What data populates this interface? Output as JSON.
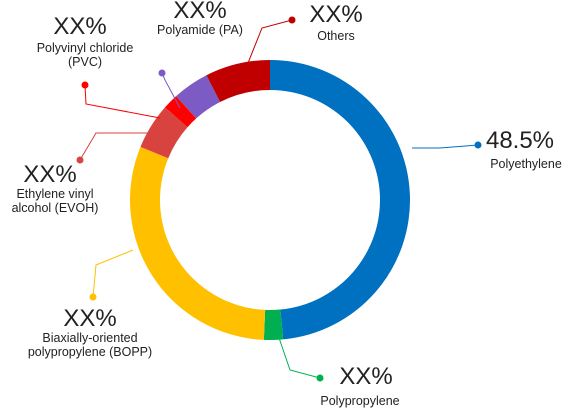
{
  "chart_data": {
    "type": "donut",
    "categories": [
      "Polyethylene",
      "Polypropylene",
      "Biaxially-oriented polypropylene (BOPP)",
      "Ethylene vinyl alcohol (EVOH)",
      "Polyvinyl chloride (PVC)",
      "Polyamide (PA)",
      "Others"
    ],
    "values": [
      48.5,
      2.2,
      30.5,
      5.3,
      1.8,
      4.2,
      7.5
    ],
    "value_labels": [
      "48.5%",
      "XX%",
      "XX%",
      "XX%",
      "XX%",
      "XX%",
      "XX%"
    ],
    "colors": [
      "#0070c0",
      "#00b050",
      "#ffc000",
      "#d9433f",
      "#ff0000",
      "#7c5cc4",
      "#c00000"
    ]
  }
}
